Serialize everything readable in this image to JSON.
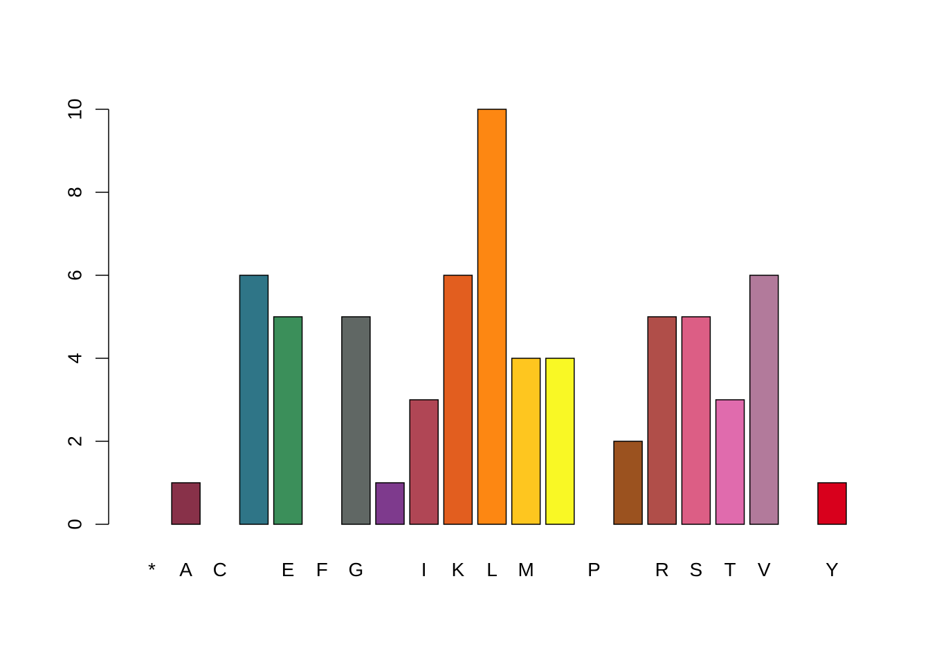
{
  "chart_data": {
    "type": "bar",
    "title": "",
    "xlabel": "",
    "ylabel": "",
    "ylim": [
      0,
      10
    ],
    "yticks": [
      0,
      2,
      4,
      6,
      8,
      10
    ],
    "grid": false,
    "legend": "none",
    "bars": [
      {
        "index": 0,
        "value": 0,
        "color": "#ffffff"
      },
      {
        "index": 1,
        "value": 1,
        "color": "#883149"
      },
      {
        "index": 2,
        "value": 0,
        "color": "#ffffff"
      },
      {
        "index": 3,
        "value": 6,
        "color": "#2f7587"
      },
      {
        "index": 4,
        "value": 5,
        "color": "#3b8f5a"
      },
      {
        "index": 5,
        "value": 0,
        "color": "#ffffff"
      },
      {
        "index": 6,
        "value": 5,
        "color": "#606764"
      },
      {
        "index": 7,
        "value": 1,
        "color": "#7e3a8d"
      },
      {
        "index": 8,
        "value": 3,
        "color": "#b04655"
      },
      {
        "index": 9,
        "value": 6,
        "color": "#e25e1f"
      },
      {
        "index": 10,
        "value": 10,
        "color": "#fd8712"
      },
      {
        "index": 11,
        "value": 4,
        "color": "#fec61f"
      },
      {
        "index": 12,
        "value": 4,
        "color": "#f9f825"
      },
      {
        "index": 13,
        "value": 0,
        "color": "#ffffff"
      },
      {
        "index": 14,
        "value": 2,
        "color": "#9b521f"
      },
      {
        "index": 15,
        "value": 5,
        "color": "#b04e49"
      },
      {
        "index": 16,
        "value": 5,
        "color": "#dc5e85"
      },
      {
        "index": 17,
        "value": 3,
        "color": "#e06bad"
      },
      {
        "index": 18,
        "value": 6,
        "color": "#b27a9b"
      },
      {
        "index": 19,
        "value": 0,
        "color": "#ffffff"
      },
      {
        "index": 20,
        "value": 1,
        "color": "#d8001c"
      }
    ],
    "tick_labels": [
      {
        "bar_index": 0,
        "label": "*"
      },
      {
        "bar_index": 1,
        "label": "A"
      },
      {
        "bar_index": 2,
        "label": "C"
      },
      {
        "bar_index": 4,
        "label": "E"
      },
      {
        "bar_index": 5,
        "label": "F"
      },
      {
        "bar_index": 6,
        "label": "G"
      },
      {
        "bar_index": 8,
        "label": "I"
      },
      {
        "bar_index": 9,
        "label": "K"
      },
      {
        "bar_index": 10,
        "label": "L"
      },
      {
        "bar_index": 11,
        "label": "M"
      },
      {
        "bar_index": 13,
        "label": "P"
      },
      {
        "bar_index": 15,
        "label": "R"
      },
      {
        "bar_index": 16,
        "label": "S"
      },
      {
        "bar_index": 17,
        "label": "T"
      },
      {
        "bar_index": 18,
        "label": "V"
      },
      {
        "bar_index": 20,
        "label": "Y"
      }
    ]
  }
}
